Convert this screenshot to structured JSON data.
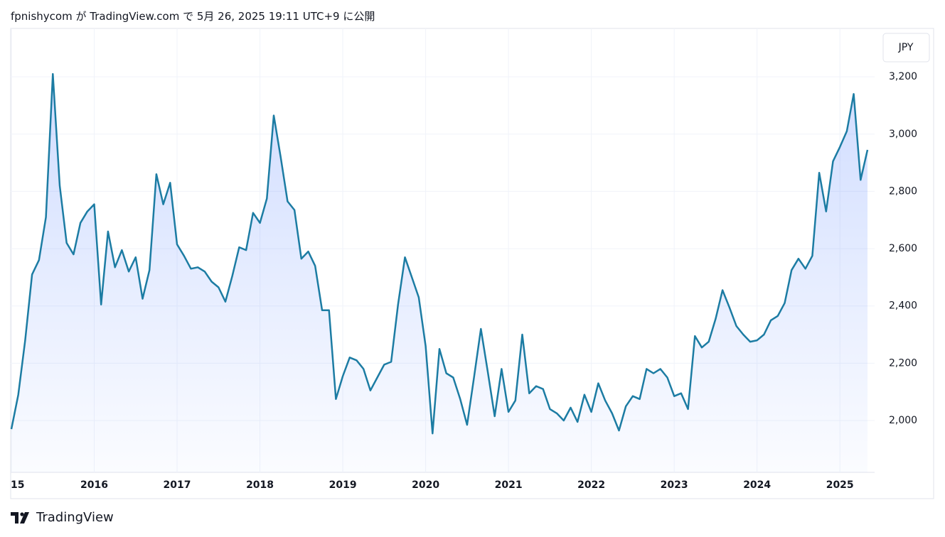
{
  "header": "fpnishycom が TradingView.com で 5月 26, 2025 19:11 UTC+9 に公開",
  "footer": "TradingView",
  "chart_data": {
    "type": "area",
    "currency": "JPY",
    "color": "#1c7ca3",
    "grid": true,
    "categories": [
      "15",
      null,
      null,
      null,
      null,
      null,
      null,
      null,
      null,
      null,
      null,
      null,
      "2016",
      null,
      null,
      null,
      null,
      null,
      null,
      null,
      null,
      null,
      null,
      null,
      "2017",
      null,
      null,
      null,
      null,
      null,
      null,
      null,
      null,
      null,
      null,
      null,
      "2018",
      null,
      null,
      null,
      null,
      null,
      null,
      null,
      null,
      null,
      null,
      null,
      "2019",
      null,
      null,
      null,
      null,
      null,
      null,
      null,
      null,
      null,
      null,
      null,
      "2020",
      null,
      null,
      null,
      null,
      null,
      null,
      null,
      null,
      null,
      null,
      null,
      "2021",
      null,
      null,
      null,
      null,
      null,
      null,
      null,
      null,
      null,
      null,
      null,
      "2022",
      null,
      null,
      null,
      null,
      null,
      null,
      null,
      null,
      null,
      null,
      null,
      "2023",
      null,
      null,
      null,
      null,
      null,
      null,
      null,
      null,
      null,
      null,
      null,
      "2024",
      null,
      null,
      null,
      null,
      null,
      null,
      null,
      null,
      null,
      null,
      null,
      "2025",
      null,
      null,
      null,
      null
    ],
    "values": [
      1970,
      2090,
      2280,
      2510,
      2560,
      2710,
      3210,
      2820,
      2620,
      2580,
      2690,
      2730,
      2755,
      2405,
      2660,
      2535,
      2595,
      2520,
      2570,
      2425,
      2525,
      2860,
      2755,
      2830,
      2615,
      2575,
      2530,
      2535,
      2520,
      2485,
      2465,
      2415,
      2505,
      2605,
      2595,
      2725,
      2690,
      2775,
      3065,
      2920,
      2765,
      2735,
      2565,
      2590,
      2540,
      2385,
      2385,
      2075,
      2155,
      2220,
      2210,
      2180,
      2105,
      2150,
      2195,
      2205,
      2405,
      2570,
      2500,
      2430,
      2260,
      1955,
      2250,
      2165,
      2150,
      2075,
      1985,
      2150,
      2320,
      2170,
      2015,
      2180,
      2030,
      2070,
      2300,
      2095,
      2120,
      2110,
      2040,
      2025,
      2000,
      2045,
      1995,
      2090,
      2030,
      2130,
      2070,
      2025,
      1965,
      2050,
      2085,
      2075,
      2180,
      2165,
      2180,
      2150,
      2085,
      2095,
      2040,
      2295,
      2255,
      2275,
      2355,
      2455,
      2395,
      2330,
      2300,
      2275,
      2280,
      2300,
      2350,
      2365,
      2410,
      2525,
      2565,
      2530,
      2575,
      2865,
      2730,
      2905,
      2955,
      3010,
      3140,
      2840,
      2945
    ],
    "ylim": [
      1819,
      3369
    ],
    "yticks": [
      {
        "value": 2000,
        "label": "2,000"
      },
      {
        "value": 2200,
        "label": "2,200"
      },
      {
        "value": 2400,
        "label": "2,400"
      },
      {
        "value": 2600,
        "label": "2,600"
      },
      {
        "value": 2800,
        "label": "2,800"
      },
      {
        "value": 3000,
        "label": "3,000"
      },
      {
        "value": 3200,
        "label": "3,200"
      }
    ]
  }
}
